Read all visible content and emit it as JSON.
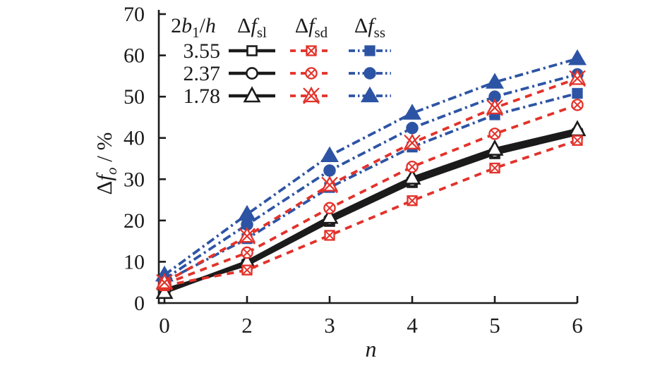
{
  "figure": {
    "background": "#ffffff"
  },
  "chart_data": {
    "type": "line",
    "title": "",
    "xlabel": "n",
    "ylabel": "Δf_o / %",
    "xlabel_parts": [
      {
        "t": "n",
        "i": 1
      }
    ],
    "ylabel_parts": [
      {
        "t": "Δ"
      },
      {
        "t": "f",
        "i": 1
      },
      {
        "t": "o",
        "i": 1,
        "s": 1
      },
      {
        "t": " / %"
      }
    ],
    "x_categories": [
      "0",
      "2",
      "3",
      "4",
      "5",
      "6"
    ],
    "y_tick_labels": [
      "0",
      "10",
      "20",
      "30",
      "40",
      "50",
      "60",
      "70"
    ],
    "ylim": [
      0,
      70
    ],
    "grid": false,
    "legend_position": "top-left-inside",
    "axis_color": "#1b1b1b",
    "colors": {
      "sl": "#1b1b1b",
      "sd": "#e2322a",
      "ss": "#2d54a4"
    },
    "marker_by_ratio": {
      "3.55": "square",
      "2.37": "circle",
      "1.78": "triangle"
    },
    "legend": {
      "header": {
        "ratio_parts": [
          {
            "t": "2"
          },
          {
            "t": "b",
            "i": 1
          },
          {
            "t": "1",
            "s": 1
          },
          {
            "t": "/"
          },
          {
            "t": "h",
            "i": 1
          }
        ],
        "sl_parts": [
          {
            "t": "Δ"
          },
          {
            "t": "f",
            "i": 1
          },
          {
            "t": "sl",
            "s": 1
          }
        ],
        "sd_parts": [
          {
            "t": "Δ"
          },
          {
            "t": "f",
            "i": 1
          },
          {
            "t": "sd",
            "s": 1
          }
        ],
        "ss_parts": [
          {
            "t": "Δ"
          },
          {
            "t": "f",
            "i": 1
          },
          {
            "t": "ss",
            "s": 1
          }
        ],
        "ratio_text": "2b1/h",
        "sl_text": "Δf_sl",
        "sd_text": "Δf_sd",
        "ss_text": "Δf_ss"
      },
      "rows": [
        "3.55",
        "2.37",
        "1.78"
      ]
    },
    "groups": [
      {
        "id": "sl",
        "label": "Δf_sl",
        "line": "solid",
        "marker_style": "open"
      },
      {
        "id": "sd",
        "label": "Δf_sd",
        "line": "dashed",
        "marker_style": "open-x"
      },
      {
        "id": "ss",
        "label": "Δf_ss",
        "line": "dashdot",
        "marker_style": "filled"
      }
    ],
    "series": [
      {
        "name": "Δf_sl 3.55",
        "group": "sl",
        "ratio": "3.55",
        "marker": "square",
        "values": [
          3.2,
          9.3,
          19.8,
          29.2,
          36.2,
          41.0
        ]
      },
      {
        "name": "Δf_sl 2.37",
        "group": "sl",
        "ratio": "2.37",
        "marker": "circle",
        "values": [
          2.9,
          9.6,
          20.2,
          29.6,
          36.6,
          41.4
        ]
      },
      {
        "name": "Δf_sl 1.78",
        "group": "sl",
        "ratio": "1.78",
        "marker": "triangle",
        "values": [
          2.6,
          10.0,
          20.8,
          30.3,
          37.3,
          42.0
        ]
      },
      {
        "name": "Δf_sd 3.55",
        "group": "sd",
        "ratio": "3.55",
        "marker": "square",
        "values": [
          4.2,
          8.0,
          16.4,
          24.8,
          32.7,
          39.4
        ]
      },
      {
        "name": "Δf_sd 2.37",
        "group": "sd",
        "ratio": "2.37",
        "marker": "circle",
        "values": [
          4.6,
          12.2,
          23.0,
          33.0,
          41.0,
          48.0
        ]
      },
      {
        "name": "Δf_sd 1.78",
        "group": "sd",
        "ratio": "1.78",
        "marker": "triangle",
        "values": [
          5.0,
          16.2,
          28.6,
          38.8,
          47.3,
          54.4
        ]
      },
      {
        "name": "Δf_ss 3.55",
        "group": "ss",
        "ratio": "3.55",
        "marker": "square",
        "values": [
          5.2,
          15.6,
          28.0,
          37.8,
          45.6,
          50.8
        ]
      },
      {
        "name": "Δf_ss 2.37",
        "group": "ss",
        "ratio": "2.37",
        "marker": "circle",
        "values": [
          5.8,
          19.0,
          32.1,
          42.4,
          50.0,
          55.4
        ]
      },
      {
        "name": "Δf_ss 1.78",
        "group": "ss",
        "ratio": "1.78",
        "marker": "triangle",
        "values": [
          6.8,
          21.5,
          35.7,
          46.0,
          53.5,
          59.2
        ]
      }
    ]
  }
}
